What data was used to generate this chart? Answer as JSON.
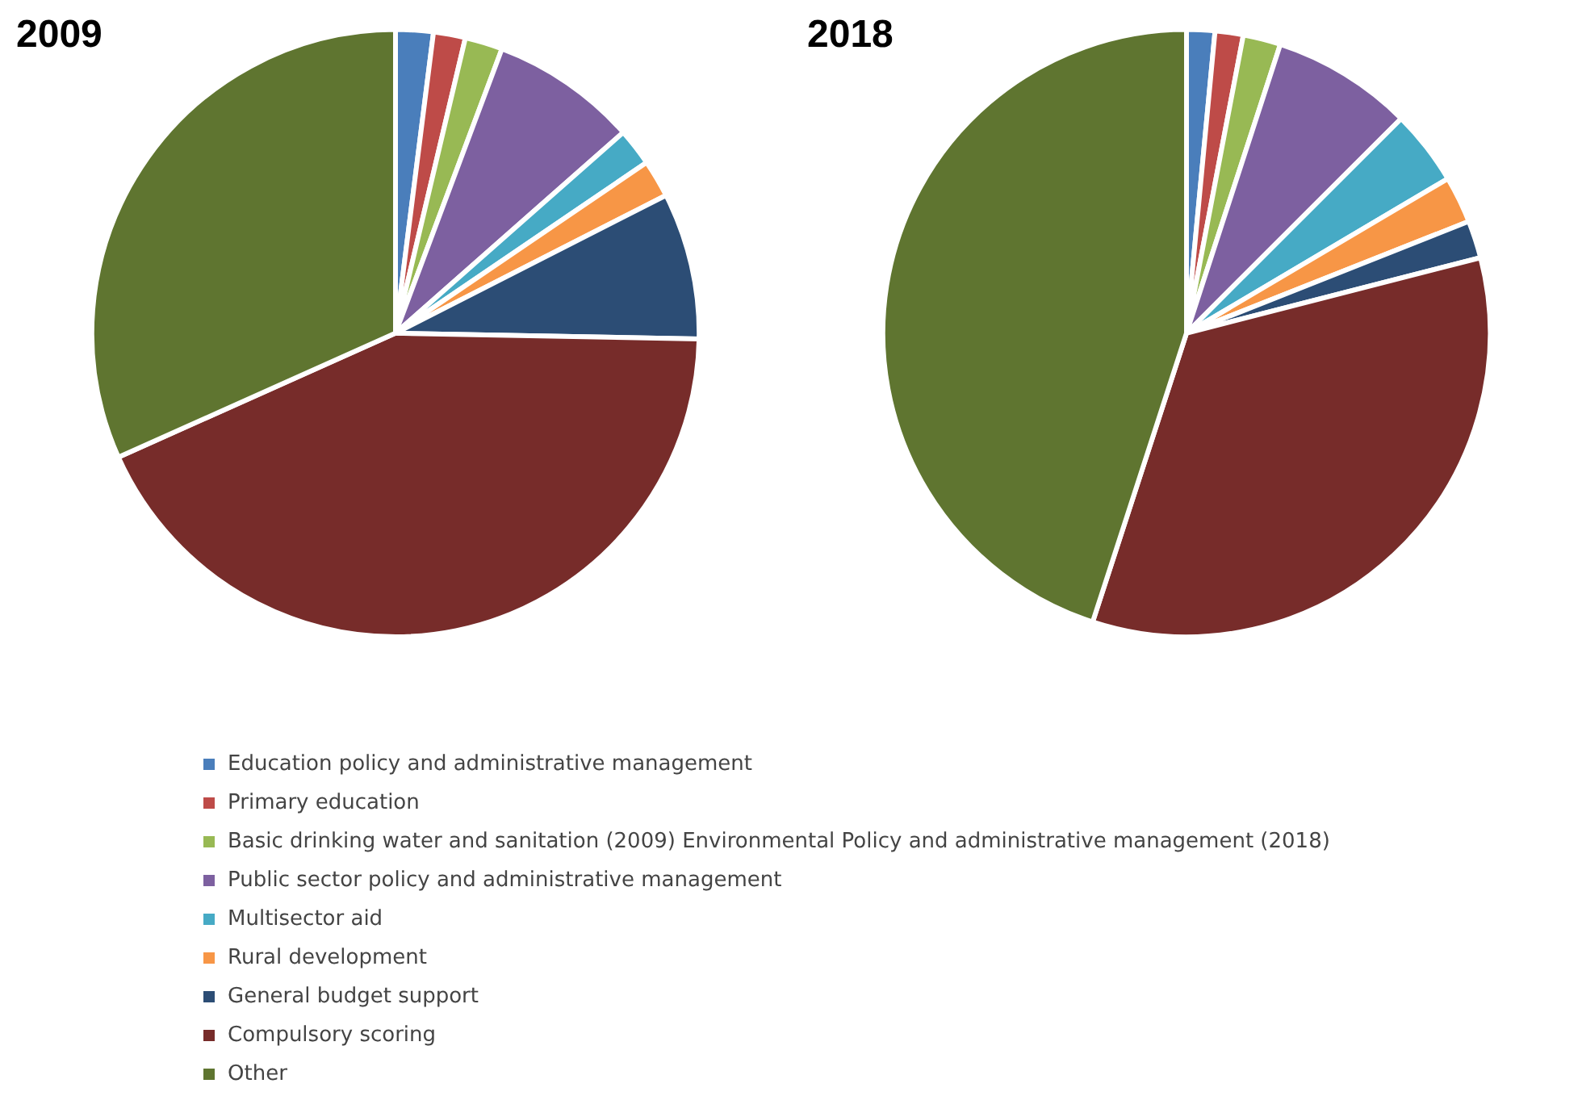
{
  "chart_data": [
    {
      "type": "pie",
      "title": "2009",
      "categories": [
        "Education policy and administrative management",
        "Primary education",
        "Basic drinking water and sanitation (2009) Environmental Policy and administrative management (2018)",
        "Public sector policy and administrative management",
        "Multisector aid",
        "Rural development",
        "General budget support",
        "Compulsory scoring",
        "Other"
      ],
      "values": [
        2,
        1.7,
        2,
        7.8,
        2,
        2,
        7.8,
        43,
        31.7
      ],
      "colors": [
        "#4a7ebb",
        "#be4b48",
        "#98b954",
        "#7d60a0",
        "#46aac5",
        "#f79646",
        "#2c4d75",
        "#772c2a",
        "#5f7530"
      ],
      "legend": "bottom"
    },
    {
      "type": "pie",
      "title": "2018",
      "categories": [
        null,
        null,
        null,
        null,
        null,
        null,
        null,
        null,
        null
      ],
      "values": [
        1.5,
        1.5,
        2,
        7.5,
        4,
        2.5,
        2,
        34,
        45
      ],
      "colors": [
        "#4a7ebb",
        "#be4b48",
        "#98b954",
        "#7d60a0",
        "#46aac5",
        "#f79646",
        "#2c4d75",
        "#772c2a",
        "#5f7530"
      ]
    }
  ]
}
